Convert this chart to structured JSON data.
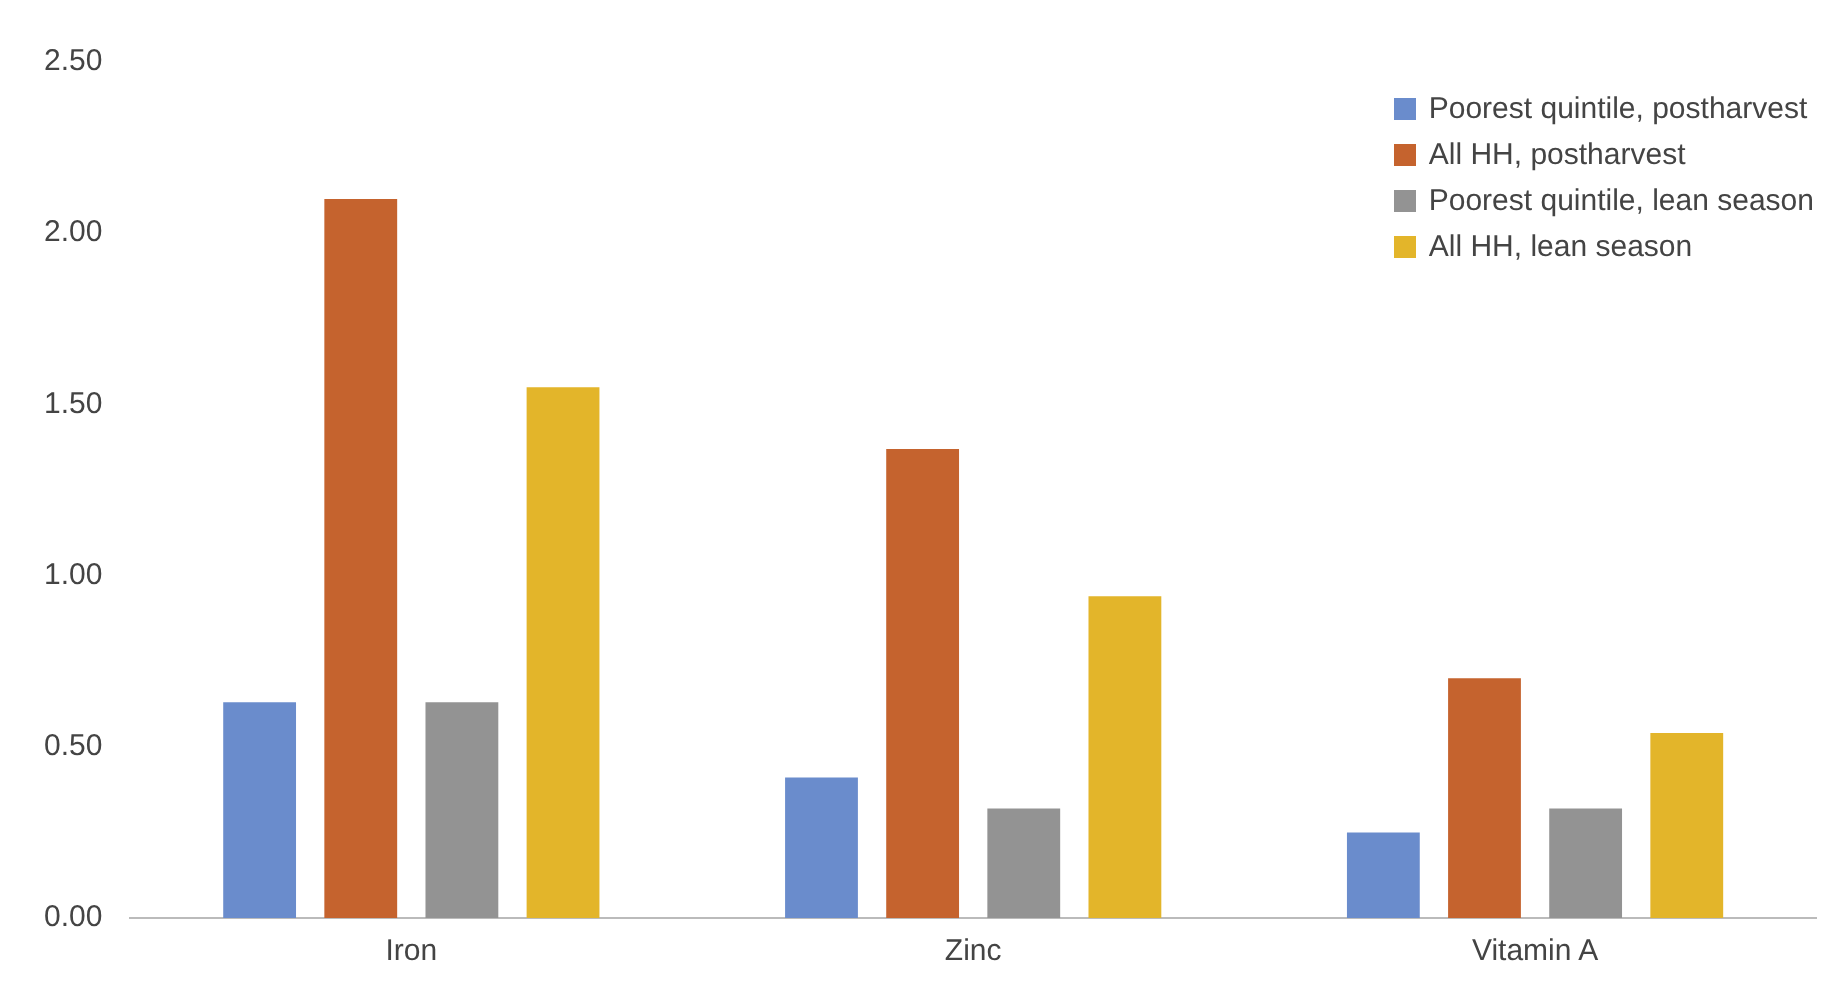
{
  "chart_data": {
    "type": "bar",
    "categories": [
      "Iron",
      "Zinc",
      "Vitamin A"
    ],
    "series": [
      {
        "name": "Poorest quintile, postharvest",
        "color": "#6a8ccc",
        "values": [
          0.63,
          0.41,
          0.25
        ]
      },
      {
        "name": "All HH, postharvest",
        "color": "#c5632e",
        "values": [
          2.1,
          1.37,
          0.7
        ]
      },
      {
        "name": "Poorest quintile, lean season",
        "color": "#939393",
        "values": [
          0.63,
          0.32,
          0.32
        ]
      },
      {
        "name": "All HH, lean season",
        "color": "#e3b52a",
        "values": [
          1.55,
          0.94,
          0.54
        ]
      }
    ],
    "ylim": [
      0,
      2.5
    ],
    "yticks": [
      {
        "value": 0,
        "label": "0.00"
      },
      {
        "value": 0.5,
        "label": "0.50"
      },
      {
        "value": 1,
        "label": "1.00"
      },
      {
        "value": 1.5,
        "label": "1.50"
      },
      {
        "value": 2,
        "label": "2.00"
      },
      {
        "value": 2.5,
        "label": "2.50"
      }
    ],
    "grid": false,
    "legend": "top right"
  }
}
